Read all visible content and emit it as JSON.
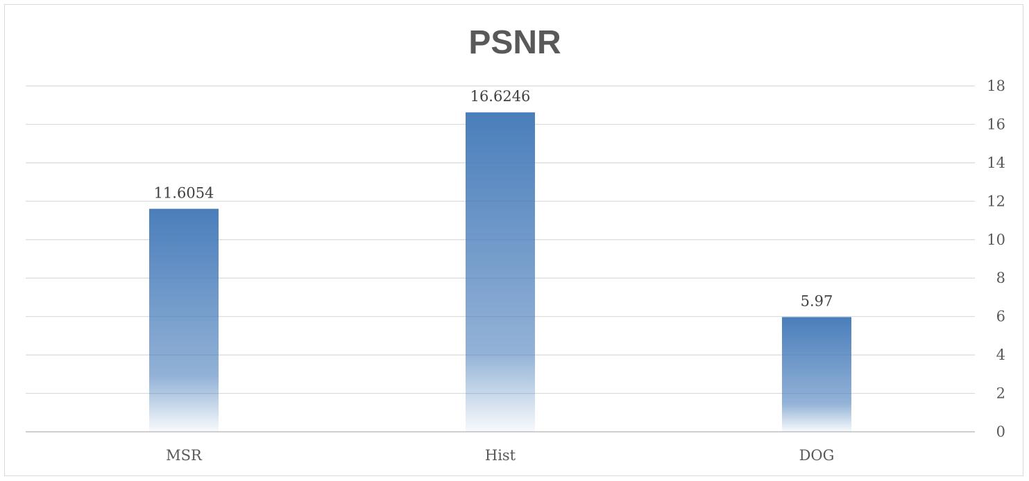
{
  "chart_data": {
    "type": "bar",
    "title": "PSNR",
    "categories": [
      "MSR",
      "Hist",
      "DOG"
    ],
    "values": [
      11.6054,
      16.6246,
      5.97
    ],
    "data_labels": [
      "11.6054",
      "16.6246",
      "5.97"
    ],
    "ylim": [
      0,
      18
    ],
    "y_ticks": [
      0,
      2,
      4,
      6,
      8,
      10,
      12,
      14,
      16,
      18
    ],
    "y_axis_side": "right",
    "grid": true,
    "legend": "none",
    "xlabel": "",
    "ylabel": "",
    "colors": {
      "bar": "#4a7ebb",
      "grid": "#d9d9d9",
      "axis": "#bfbfbf",
      "text": "#595959"
    }
  }
}
